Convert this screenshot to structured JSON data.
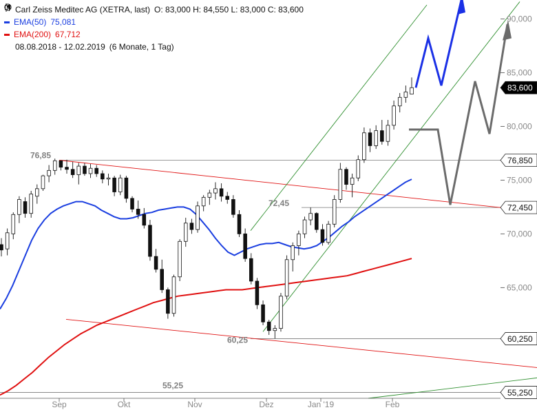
{
  "legend": {
    "title": "Carl Zeiss Meditec AG (XETRA, last)",
    "ohlc": "O: 83,000  H: 84,550  L: 83,000  C: 83,600",
    "ema50_label": "EMA(50)",
    "ema50_value": "75,081",
    "ema200_label": "EMA(200)",
    "ema200_value": "67,712",
    "range": "08.08.2018 - 12.02.2019",
    "period": "(6 Monate, 1 Tag)",
    "icons": [
      "candlestick-icon",
      "clock-icon"
    ]
  },
  "colors": {
    "bg": "#ffffff",
    "candle_up": "#ffffff",
    "candle_down": "#111111",
    "ema50": "#1a3ee0",
    "ema200": "#e01010",
    "red_line": "#e01010",
    "green_line": "#2f8f2f",
    "blue_arrow": "#1a30e6",
    "gray_arrow": "#6b6b6b",
    "price_tag": "#000000"
  },
  "chart_data": {
    "type": "candlestick",
    "title": "Carl Zeiss Meditec AG (XETRA, last)",
    "x_tick_labels": [
      "Sep",
      "Okt",
      "Nov",
      "Dez",
      "Jan '19",
      "Feb"
    ],
    "y_tick_labels": [
      "90,000",
      "85,000",
      "80,000",
      "75,000",
      "70,000",
      "65,000"
    ],
    "ylim": [
      54.7,
      91.5
    ],
    "grid": false,
    "price_tags": [
      {
        "label": "83,600",
        "value": 83.6,
        "style": "dark"
      },
      {
        "label": "76,850",
        "value": 76.85,
        "style": "light"
      },
      {
        "label": "72,450",
        "value": 72.45,
        "style": "light"
      },
      {
        "label": "60,250",
        "value": 60.25,
        "style": "light"
      },
      {
        "label": "55,250",
        "value": 55.25,
        "style": "light"
      }
    ],
    "annotations": [
      {
        "text": "76,85",
        "value": 76.85
      },
      {
        "text": "72,45",
        "value": 72.45
      },
      {
        "text": "60,25",
        "value": 60.25
      },
      {
        "text": "55,25",
        "value": 55.25
      }
    ],
    "series": [
      {
        "name": "Carl Zeiss Meditec AG",
        "type": "candlestick",
        "ohlc": [
          [
            69.0,
            69.6,
            67.9,
            68.5
          ],
          [
            68.6,
            70.5,
            68.0,
            70.1
          ],
          [
            70.0,
            72.0,
            69.5,
            71.8
          ],
          [
            71.8,
            73.5,
            71.0,
            73.2
          ],
          [
            73.0,
            73.4,
            71.5,
            71.9
          ],
          [
            71.9,
            74.0,
            71.5,
            73.7
          ],
          [
            73.5,
            74.6,
            72.8,
            74.2
          ],
          [
            74.2,
            75.5,
            74.0,
            75.4
          ],
          [
            75.4,
            76.4,
            74.8,
            75.9
          ],
          [
            75.9,
            77.0,
            75.5,
            76.8
          ],
          [
            76.8,
            76.8,
            75.9,
            76.2
          ],
          [
            76.2,
            76.9,
            75.6,
            76.0
          ],
          [
            76.0,
            76.7,
            75.2,
            75.5
          ],
          [
            75.5,
            76.6,
            74.6,
            76.3
          ],
          [
            76.3,
            76.6,
            75.4,
            75.6
          ],
          [
            75.6,
            76.5,
            75.2,
            76.1
          ],
          [
            76.1,
            76.4,
            75.3,
            75.6
          ],
          [
            75.6,
            75.9,
            74.7,
            75.1
          ],
          [
            75.1,
            75.6,
            74.5,
            75.2
          ],
          [
            75.2,
            75.4,
            73.5,
            73.9
          ],
          [
            73.9,
            75.5,
            73.6,
            75.2
          ],
          [
            75.2,
            75.4,
            72.9,
            73.3
          ],
          [
            73.3,
            73.5,
            72.0,
            72.3
          ],
          [
            72.3,
            73.1,
            71.4,
            71.8
          ],
          [
            71.8,
            72.4,
            70.5,
            70.8
          ],
          [
            70.8,
            71.3,
            67.5,
            67.9
          ],
          [
            67.9,
            68.6,
            66.4,
            66.7
          ],
          [
            66.7,
            67.6,
            64.5,
            64.8
          ],
          [
            64.8,
            65.0,
            62.1,
            62.6
          ],
          [
            62.6,
            66.2,
            62.3,
            66.0
          ],
          [
            66.0,
            69.5,
            65.6,
            69.3
          ],
          [
            69.3,
            71.5,
            68.8,
            71.0
          ],
          [
            71.0,
            71.4,
            70.0,
            70.4
          ],
          [
            70.4,
            73.0,
            70.1,
            72.6
          ],
          [
            72.6,
            73.6,
            72.1,
            73.4
          ],
          [
            73.4,
            74.1,
            72.7,
            73.8
          ],
          [
            73.8,
            74.8,
            73.2,
            74.2
          ],
          [
            74.2,
            74.7,
            73.0,
            73.5
          ],
          [
            73.5,
            73.9,
            72.8,
            73.2
          ],
          [
            73.2,
            73.6,
            71.5,
            71.8
          ],
          [
            71.8,
            72.2,
            69.7,
            70.0
          ],
          [
            70.0,
            70.5,
            67.4,
            67.7
          ],
          [
            67.7,
            68.2,
            65.3,
            65.6
          ],
          [
            65.6,
            65.9,
            63.0,
            63.4
          ],
          [
            63.4,
            63.8,
            61.5,
            61.8
          ],
          [
            61.8,
            62.0,
            60.6,
            61.0
          ],
          [
            61.0,
            61.5,
            60.25,
            61.2
          ],
          [
            61.2,
            64.5,
            60.9,
            64.2
          ],
          [
            64.2,
            68.0,
            63.9,
            67.6
          ],
          [
            67.6,
            69.2,
            66.5,
            68.9
          ],
          [
            68.9,
            70.3,
            68.0,
            70.0
          ],
          [
            70.0,
            71.6,
            69.6,
            71.3
          ],
          [
            71.3,
            72.45,
            70.8,
            71.9
          ],
          [
            71.9,
            72.0,
            70.1,
            70.4
          ],
          [
            70.4,
            70.9,
            68.9,
            69.2
          ],
          [
            69.2,
            71.2,
            69.0,
            70.9
          ],
          [
            70.9,
            73.6,
            70.6,
            73.2
          ],
          [
            73.2,
            76.6,
            72.9,
            76.0
          ],
          [
            76.0,
            76.2,
            74.1,
            74.6
          ],
          [
            74.6,
            75.6,
            73.4,
            75.2
          ],
          [
            75.2,
            77.3,
            74.9,
            76.9
          ],
          [
            76.9,
            79.9,
            76.6,
            79.4
          ],
          [
            79.4,
            79.8,
            77.6,
            78.2
          ],
          [
            78.2,
            80.1,
            77.9,
            79.6
          ],
          [
            79.6,
            80.6,
            78.3,
            78.6
          ],
          [
            78.6,
            80.6,
            78.2,
            80.1
          ],
          [
            80.1,
            82.4,
            79.7,
            81.9
          ],
          [
            81.9,
            83.1,
            81.3,
            82.7
          ],
          [
            82.7,
            83.8,
            82.2,
            83.2
          ],
          [
            83.0,
            84.55,
            83.0,
            83.6
          ]
        ]
      },
      {
        "name": "EMA(50)",
        "type": "line",
        "values": [
          63.0,
          64.0,
          65.2,
          66.6,
          68.0,
          69.4,
          70.5,
          71.3,
          71.9,
          72.3,
          72.6,
          72.8,
          73.0,
          73.0,
          72.8,
          72.6,
          72.2,
          71.9,
          71.6,
          71.4,
          71.4,
          71.5,
          71.7,
          71.9,
          72.0,
          72.2,
          72.3,
          72.4,
          72.5,
          72.5,
          72.3,
          71.8,
          71.1,
          70.4,
          69.6,
          68.9,
          68.3,
          68.0,
          68.3,
          68.6,
          68.8,
          69.0,
          69.1,
          69.1,
          69.2,
          69.0,
          68.8,
          68.7,
          68.6,
          68.7,
          68.9,
          69.3,
          69.7,
          70.2,
          70.7,
          71.1,
          71.6,
          72.0,
          72.4,
          72.8,
          73.2,
          73.6,
          74.0,
          74.4,
          74.8,
          75.08
        ]
      },
      {
        "name": "EMA(200)",
        "type": "line",
        "values": [
          55.0,
          55.4,
          55.9,
          56.5,
          57.1,
          57.8,
          58.5,
          59.1,
          59.7,
          60.2,
          60.7,
          61.1,
          61.5,
          61.8,
          62.1,
          62.4,
          62.7,
          63.0,
          63.3,
          63.6,
          63.8,
          64.0,
          64.2,
          64.3,
          64.4,
          64.5,
          64.6,
          64.7,
          64.8,
          64.8,
          64.8,
          64.9,
          65.0,
          65.1,
          65.2,
          65.3,
          65.4,
          65.5,
          65.6,
          65.7,
          65.8,
          65.9,
          66.0,
          66.1,
          66.3,
          66.5,
          66.7,
          66.9,
          67.1,
          67.3,
          67.5,
          67.71
        ]
      }
    ]
  }
}
